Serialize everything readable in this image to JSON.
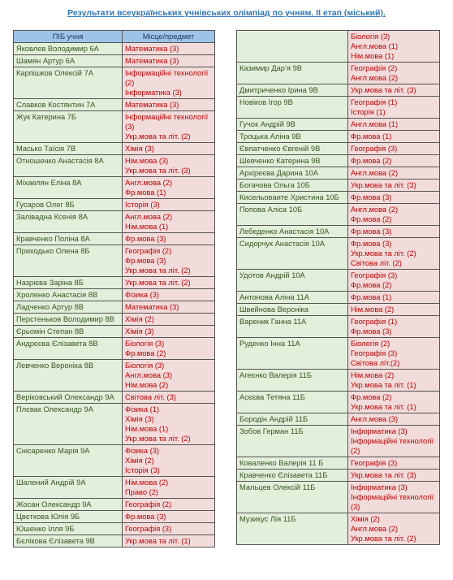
{
  "title": "Результати всеукраїнських учнівських олімпіад по учням. ІІ етап (міський).",
  "left_table": {
    "header": [
      "ПІБ учня",
      "Місце/предмет"
    ],
    "rows": [
      {
        "name": "Яковлев Володимир 6А",
        "subjects": [
          "Математика (3)"
        ]
      },
      {
        "name": "Шамян Артур 6А",
        "subjects": [
          "Математика (3)"
        ]
      },
      {
        "name": "Карпішков Олексій 7А",
        "subjects": [
          "Інформаційні технології (2)",
          "Інформатика (3)"
        ]
      },
      {
        "name": "Славков Костянтин 7А",
        "subjects": [
          "Математика (3)"
        ]
      },
      {
        "name": "Жук Катерина 7Б",
        "subjects": [
          "Інформаційні технології (3)",
          "Укр.мова та літ. (2)"
        ]
      },
      {
        "name": "Масько Таїсія 7В",
        "subjects": [
          "Хімія (3)"
        ]
      },
      {
        "name": "Отношенко Анастасія 8А",
        "subjects": [
          "Нім.мова (3)",
          "Укр.мова та літ. (3)"
        ]
      },
      {
        "name": "Міхаелян Еліна 8А",
        "subjects": [
          "Англ.мова (2)",
          "Фр.мова (1)"
        ]
      },
      {
        "name": "Гусаров Олег 8Б",
        "subjects": [
          "Історія (3)"
        ]
      },
      {
        "name": "Залівадна Ксенія 8А",
        "subjects": [
          "Англ.мова (2)",
          "Нім.мова (1)"
        ]
      },
      {
        "name": "Кравченко Поліна 8А",
        "subjects": [
          "Фр.мова (3)"
        ]
      },
      {
        "name": "Приходько Олена 8Б",
        "subjects": [
          "Географія (2)",
          "Фр.мова (3)",
          "Укр.мова та літ. (2)"
        ]
      },
      {
        "name": "Назрієва Заріна 8Б",
        "subjects": [
          "Укр.мова та літ. (2)"
        ]
      },
      {
        "name": "Хроленко Анастасія 8В",
        "subjects": [
          "Фізика (3)"
        ]
      },
      {
        "name": "Ладченко Артур 8В",
        "subjects": [
          "Математика (3)"
        ]
      },
      {
        "name": "Перстеньков Володимир 8В",
        "subjects": [
          "Хімія (2)"
        ]
      },
      {
        "name": "Єрьомін Степан 8В",
        "subjects": [
          "Хімія (3)"
        ]
      },
      {
        "name": "Андрєєва Єлізавета 8В",
        "subjects": [
          "Біологія (3)",
          "Фр.мова (2)"
        ]
      },
      {
        "name": "Левченко Вероніка 8В",
        "subjects": [
          "Біологія (3)",
          "Англ.мова (3)",
          "Нім.мова (2)"
        ]
      },
      {
        "name": "Веріковський Олександр 9А",
        "subjects": [
          "Світова літ. (3)"
        ]
      },
      {
        "name": "Плєвак Олександр 9А",
        "subjects": [
          "Фізика (1)",
          "Хімія (3)",
          "Нім.мова (1)",
          "Укр.мова та літ. (2)"
        ]
      },
      {
        "name": "Снісаренко Марія 9А",
        "subjects": [
          "Фізика (3)",
          "Хімія (2)",
          "Історія (3)"
        ]
      },
      {
        "name": "Шалений Андрій 9А",
        "subjects": [
          "Нім.мова (2)",
          "Право (2)"
        ]
      },
      {
        "name": "Жосан Олександр 9А",
        "subjects": [
          "Географія (2)"
        ]
      },
      {
        "name": "Цвєткова Юлія 9Б",
        "subjects": [
          "Фр.мова (3)"
        ]
      },
      {
        "name": "Юшенко Ілля 9Б",
        "subjects": [
          "Географія (3)"
        ]
      },
      {
        "name": "Бєлікова Єлізавета 9В",
        "subjects": [
          "Укр.мова та літ. (1)"
        ]
      }
    ]
  },
  "right_table": {
    "rows": [
      {
        "name": null,
        "subjects": [
          "Біологія (3)",
          "Англ.мова (1)",
          "Нім.мова (1)"
        ]
      },
      {
        "name": "Казимир Дар’я 9В",
        "subjects": [
          "Географія (2)",
          "Англ.мова (2)"
        ]
      },
      {
        "name": "Дмитриченко Ірина 9В",
        "subjects": [
          "Укр.мова та літ. (3)"
        ]
      },
      {
        "name": "Новіков Ігор 9В",
        "subjects": [
          "Географія (1)",
          "Історія (1)"
        ]
      },
      {
        "name": "Гучок Андрій 9В",
        "subjects": [
          "Англ.мова (1)"
        ]
      },
      {
        "name": "Троцька Аліна 9В",
        "subjects": [
          "Фр.мова (1)"
        ]
      },
      {
        "name": "Євпатченко Євгеній 9В",
        "subjects": [
          "Географія (3)"
        ]
      },
      {
        "name": "Шевченко Катерина 9В",
        "subjects": [
          "Фр.мова (2)"
        ]
      },
      {
        "name": "Архіреєва Дарина 10А",
        "subjects": [
          "Англ.мова (2)"
        ]
      },
      {
        "name": "Богачова Ольга 10Б",
        "subjects": [
          "Укр.мова та літ. (3)"
        ]
      },
      {
        "name": "Кисельоваите Христина 10Б",
        "subjects": [
          "Фр.мова (3)"
        ]
      },
      {
        "name": "Попова Аліса 10Б",
        "subjects": [
          "Англ.мова (2)",
          "Фр.мова (2)"
        ]
      },
      {
        "name": "Лебеденко Анастасія 10А",
        "subjects": [
          "Фр.мова (3)"
        ]
      },
      {
        "name": "Сидорчук Анастасія 10А",
        "subjects": [
          "Фр.мова (3)",
          "Укр.мова та літ. (2)",
          "Світова літ. (2)"
        ]
      },
      {
        "name": "Удотов Андрій 10А",
        "subjects": [
          "Географія (3)",
          "Фр.мова (2)"
        ]
      },
      {
        "name": "Антонова Аліна 11А",
        "subjects": [
          "Фр.мова (1)"
        ]
      },
      {
        "name": "Швейнова Вероніка",
        "subjects": [
          "Нім.мова (2)"
        ]
      },
      {
        "name": "Вареник Ганна 11А",
        "subjects": [
          "Географія (1)",
          "Фр.мова (3)"
        ]
      },
      {
        "name": "Руденко Інна 11А",
        "subjects": [
          "Біологія (2)",
          "Географія (3)",
          "Світова літ.(2)"
        ]
      },
      {
        "name": "Агеєнко Валерія 11Б",
        "subjects": [
          "Нім.мова (2)",
          "Укр.мова та літ. (1)"
        ]
      },
      {
        "name": "Асєєва Тетяна 11Б",
        "subjects": [
          "Фр.мова (2)",
          "Укр.мова та літ. (1)"
        ]
      },
      {
        "name": "Бородін Андрій 11Б",
        "subjects": [
          "Англ.мова (3)"
        ]
      },
      {
        "name": "Зобов Герман 11Б",
        "subjects": [
          "Інформатика (3)",
          "Інформаційні технології (2)"
        ]
      },
      {
        "name": "Коваленко Валерія 11 Б",
        "subjects": [
          "Географія (3)"
        ]
      },
      {
        "name": "Кравченко Єлізавета 11Б",
        "subjects": [
          "Укр.мова та літ. (3)"
        ]
      },
      {
        "name": "Мальцев Олексій 11Б",
        "subjects": [
          "Інформатика (3)",
          "Інформаційні технології (3)"
        ]
      },
      {
        "name": "Музикус Лія 11Б",
        "subjects": [
          "Хімія (2)",
          "Англ.мова (2)",
          "Укр.мова та літ. (2)"
        ]
      }
    ]
  }
}
